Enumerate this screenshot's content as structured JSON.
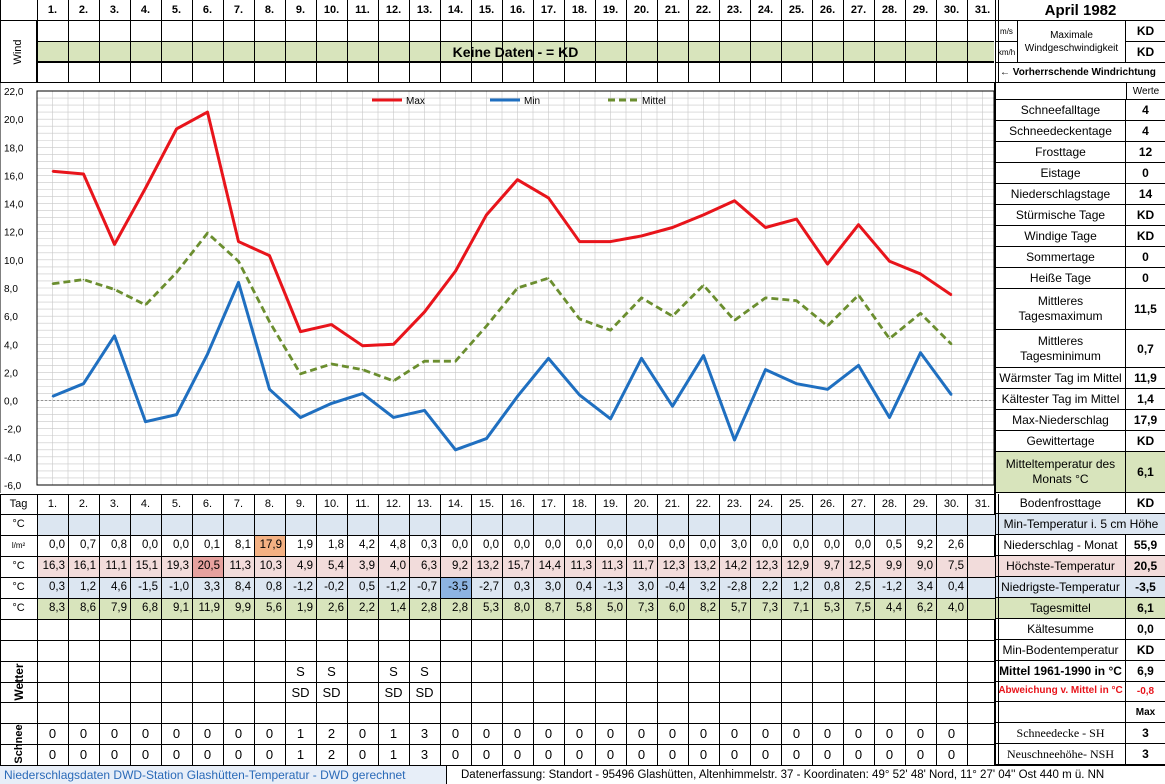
{
  "header": {
    "title": "April 1982",
    "days": [
      "1.",
      "2.",
      "3.",
      "4.",
      "5.",
      "6.",
      "7.",
      "8.",
      "9.",
      "10.",
      "11.",
      "12.",
      "13.",
      "14.",
      "15.",
      "16.",
      "17.",
      "18.",
      "19.",
      "20.",
      "21.",
      "22.",
      "23.",
      "24.",
      "25.",
      "26.",
      "27.",
      "28.",
      "29.",
      "30.",
      "31."
    ],
    "tag_label": "Tag",
    "wind_label": "Wind",
    "no_data": "Keine Daten -  = KD",
    "unit_ms": "m/s",
    "unit_kmh": "km/h",
    "max_wind_label": "Maximale Windgeschwindigkeit",
    "max_wind_ms": "KD",
    "max_wind_kmh": "KD",
    "wind_dir_label": "← Vorherrschende Windrichtung",
    "werte_label": "Werte"
  },
  "stats": [
    {
      "label": "Schneefalltage",
      "value": "4"
    },
    {
      "label": "Schneedeckentage",
      "value": "4"
    },
    {
      "label": "Frosttage",
      "value": "12"
    },
    {
      "label": "Eistage",
      "value": "0"
    },
    {
      "label": "Niederschlagstage",
      "value": "14"
    },
    {
      "label": "Stürmische Tage",
      "value": "KD"
    },
    {
      "label": "Windige Tage",
      "value": "KD"
    },
    {
      "label": "Sommertage",
      "value": "0"
    },
    {
      "label": "Heiße Tage",
      "value": "0"
    },
    {
      "label": "Mittleres Tagesmaximum",
      "value": "11,5"
    },
    {
      "label": "Mittleres Tagesminimum",
      "value": "0,7"
    },
    {
      "label": "Wärmster Tag im Mittel",
      "value": "11,9"
    },
    {
      "label": "Kältester Tag im Mittel",
      "value": "1,4"
    },
    {
      "label": "Max-Niederschlag",
      "value": "17,9"
    },
    {
      "label": "Gewittertage",
      "value": "KD"
    },
    {
      "label": "Mitteltemperatur des Monats °C",
      "value": "6,1"
    },
    {
      "label": "Bodenfrosttage",
      "value": "KD"
    }
  ],
  "table": {
    "unit_c": "°C",
    "unit_lm2": "l/m²",
    "min_ground_label": "Min-Temperatur i. 5 cm Höhe",
    "rain_label": "Niederschlag - Monat",
    "rain_total": "55,9",
    "max_label": "Höchste-Temperatur",
    "max_value": "20,5",
    "min_label": "Niedrigste-Temperatur",
    "min_value": "-3,5",
    "mean_label": "Tagesmittel",
    "mean_value": "6,1",
    "rain": [
      "0,0",
      "0,7",
      "0,8",
      "0,0",
      "0,0",
      "0,1",
      "8,1",
      "17,9",
      "1,9",
      "1,8",
      "4,2",
      "4,8",
      "0,3",
      "0,0",
      "0,0",
      "0,0",
      "0,0",
      "0,0",
      "0,0",
      "0,0",
      "0,0",
      "0,0",
      "3,0",
      "0,0",
      "0,0",
      "0,0",
      "0,0",
      "0,5",
      "9,2",
      "2,6"
    ],
    "tmax": [
      "16,3",
      "16,1",
      "11,1",
      "15,1",
      "19,3",
      "20,5",
      "11,3",
      "10,3",
      "4,9",
      "5,4",
      "3,9",
      "4,0",
      "6,3",
      "9,2",
      "13,2",
      "15,7",
      "14,4",
      "11,3",
      "11,3",
      "11,7",
      "12,3",
      "13,2",
      "14,2",
      "12,3",
      "12,9",
      "9,7",
      "12,5",
      "9,9",
      "9,0",
      "7,5"
    ],
    "tmin": [
      "0,3",
      "1,2",
      "4,6",
      "-1,5",
      "-1,0",
      "3,3",
      "8,4",
      "0,8",
      "-1,2",
      "-0,2",
      "0,5",
      "-1,2",
      "-0,7",
      "-3,5",
      "-2,7",
      "0,3",
      "3,0",
      "0,4",
      "-1,3",
      "3,0",
      "-0,4",
      "3,2",
      "-2,8",
      "2,2",
      "1,2",
      "0,8",
      "2,5",
      "-1,2",
      "3,4",
      "0,4"
    ],
    "tmean": [
      "8,3",
      "8,6",
      "7,9",
      "6,8",
      "9,1",
      "11,9",
      "9,9",
      "5,6",
      "1,9",
      "2,6",
      "2,2",
      "1,4",
      "2,8",
      "2,8",
      "5,3",
      "8,0",
      "8,7",
      "5,8",
      "5,0",
      "7,3",
      "6,0",
      "8,2",
      "5,7",
      "7,3",
      "7,1",
      "5,3",
      "7,5",
      "4,4",
      "6,2",
      "4,0"
    ]
  },
  "lower": {
    "kaeltesumme_label": "Kältesumme",
    "kaeltesumme_value": "0,0",
    "min_boden_label": "Min-Bodentemperatur",
    "min_boden_value": "KD",
    "mittel_label": "Mittel 1961-1990 in °C",
    "mittel_value": "6,9",
    "abw_label": "Abweichung v. Mittel in °C",
    "abw_value": "-0,8",
    "max_label": "Max",
    "wetter_label": "Wetter",
    "schnee_label": "Schnee",
    "weather_row1": [
      "",
      "",
      "",
      "",
      "",
      "",
      "",
      "",
      "S",
      "S",
      "",
      "S",
      "S",
      "",
      "",
      "",
      "",
      "",
      "",
      "",
      "",
      "",
      "",
      "",
      "",
      "",
      "",
      "",
      "",
      ""
    ],
    "weather_row2": [
      "",
      "",
      "",
      "",
      "",
      "",
      "",
      "",
      "SD",
      "SD",
      "",
      "SD",
      "SD",
      "",
      "",
      "",
      "",
      "",
      "",
      "",
      "",
      "",
      "",
      "",
      "",
      "",
      "",
      "",
      "",
      ""
    ],
    "sh_label": "Schneedecke -  SH",
    "sh_value": "3",
    "nsh_label": "Neuschneehöhe- NSH",
    "nsh_value": "3",
    "snow_sh": [
      "0",
      "0",
      "0",
      "0",
      "0",
      "0",
      "0",
      "0",
      "1",
      "2",
      "0",
      "1",
      "3",
      "0",
      "0",
      "0",
      "0",
      "0",
      "0",
      "0",
      "0",
      "0",
      "0",
      "0",
      "0",
      "0",
      "0",
      "0",
      "0",
      "0"
    ],
    "snow_nsh": [
      "0",
      "0",
      "0",
      "0",
      "0",
      "0",
      "0",
      "0",
      "1",
      "2",
      "0",
      "1",
      "3",
      "0",
      "0",
      "0",
      "0",
      "0",
      "0",
      "0",
      "0",
      "0",
      "0",
      "0",
      "0",
      "0",
      "0",
      "0",
      "0",
      "0"
    ]
  },
  "footer": {
    "left": "Niederschlagsdaten DWD-Station Glashütten-Temperatur -  DWD gerechnet",
    "right": "Datenerfassung: Standort -  95496  Glashütten, Altenhimmelstr. 37 - Koordinaten:  49° 52' 48' Nord,   11° 27' 04'' Ost  440 m ü. NN"
  },
  "colors": {
    "max": "#e8141b",
    "min": "#1f6fc0",
    "mean": "#6b8e2f",
    "band_green": "#d8e4bc",
    "band_blue": "#dce6f1",
    "band_pink": "#f2dcdb",
    "highlight_orange": "#f4b183",
    "highlight_red": "#e6a19e",
    "highlight_blue": "#8db4e2"
  },
  "chart_data": {
    "type": "line",
    "title": "",
    "xlabel": "",
    "ylabel": "",
    "x": [
      1,
      2,
      3,
      4,
      5,
      6,
      7,
      8,
      9,
      10,
      11,
      12,
      13,
      14,
      15,
      16,
      17,
      18,
      19,
      20,
      21,
      22,
      23,
      24,
      25,
      26,
      27,
      28,
      29,
      30
    ],
    "ylim": [
      -6,
      22
    ],
    "yticks": [
      "22,0",
      "20,0",
      "18,0",
      "16,0",
      "14,0",
      "12,0",
      "10,0",
      "8,0",
      "6,0",
      "4,0",
      "2,0",
      "0,0",
      "-2,0",
      "-4,0",
      "-6,0"
    ],
    "legend_position": "top",
    "series": [
      {
        "name": "Max",
        "values": [
          16.3,
          16.1,
          11.1,
          15.1,
          19.3,
          20.5,
          11.3,
          10.3,
          4.9,
          5.4,
          3.9,
          4.0,
          6.3,
          9.2,
          13.2,
          15.7,
          14.4,
          11.3,
          11.3,
          11.7,
          12.3,
          13.2,
          14.2,
          12.3,
          12.9,
          9.7,
          12.5,
          9.9,
          9.0,
          7.5
        ]
      },
      {
        "name": "Min",
        "values": [
          0.3,
          1.2,
          4.6,
          -1.5,
          -1.0,
          3.3,
          8.4,
          0.8,
          -1.2,
          -0.2,
          0.5,
          -1.2,
          -0.7,
          -3.5,
          -2.7,
          0.3,
          3.0,
          0.4,
          -1.3,
          3.0,
          -0.4,
          3.2,
          -2.8,
          2.2,
          1.2,
          0.8,
          2.5,
          -1.2,
          3.4,
          0.4
        ]
      },
      {
        "name": "Mittel",
        "values": [
          8.3,
          8.6,
          7.9,
          6.8,
          9.1,
          11.9,
          9.9,
          5.6,
          1.9,
          2.6,
          2.2,
          1.4,
          2.8,
          2.8,
          5.3,
          8.0,
          8.7,
          5.8,
          5.0,
          7.3,
          6.0,
          8.2,
          5.7,
          7.3,
          7.1,
          5.3,
          7.5,
          4.4,
          6.2,
          4.0
        ]
      }
    ]
  }
}
